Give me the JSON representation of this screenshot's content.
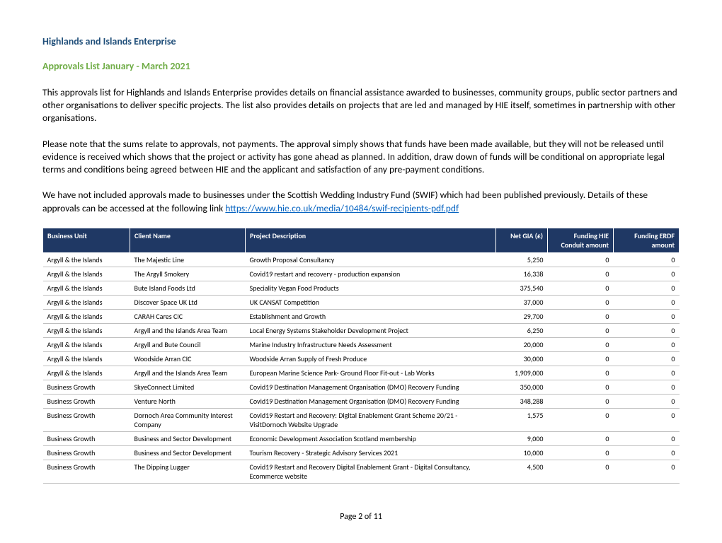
{
  "title1_text": "Highlands and Islands Enterprise",
  "title1_color": "#1f4e79",
  "title2_text": "Approvals List January - March 2021",
  "title2_color": "#70ad47",
  "para1": "This approvals list for Highlands and Islands Enterprise provides details on financial assistance awarded to businesses, community groups, public sector partners and other organisations to deliver specific projects. The list also provides details on projects that are led and managed by HIE itself, sometimes in partnership with other organisations.",
  "para2": "Please note that the sums relate to approvals, not payments. The approval simply shows that funds have been made available, but they will not be released until evidence is received which shows that the project or activity has gone ahead as planned. In addition, draw down of funds will be conditional on appropriate legal terms and conditions being agreed between HIE and the applicant and satisfaction of any pre-payment conditions.",
  "para3_a": "We have not included approvals made to businesses under the Scottish Wedding Industry Fund (SWIF) which had been published previously. Details of these approvals can be accessed at the following link ",
  "para3_link": "https://www.hie.co.uk/media/10484/swif-recipients-pdf.pdf",
  "table": {
    "header_bg": "#1f3864",
    "col_widths": [
      "110px",
      "150px",
      "auto",
      "60px",
      "80px",
      "80px"
    ],
    "columns": [
      "Business Unit",
      "Client Name",
      "Project Description",
      "Net GIA (£)",
      "Funding HIE Conduit amount",
      "Funding ERDF amount"
    ],
    "col_align": [
      "l",
      "l",
      "l",
      "r",
      "r",
      "r"
    ],
    "rows": [
      [
        "Argyll & the Islands",
        "The Majestic Line",
        "Growth Proposal Consultancy",
        "5,250",
        "0",
        "0"
      ],
      [
        "Argyll & the Islands",
        "The Argyll Smokery",
        "Covid19 restart and recovery - production expansion",
        "16,338",
        "0",
        "0"
      ],
      [
        "Argyll & the Islands",
        "Bute Island Foods Ltd",
        "Speciality Vegan Food Products",
        "375,540",
        "0",
        "0"
      ],
      [
        "Argyll & the Islands",
        "Discover Space UK Ltd",
        "UK CANSAT Competition",
        "37,000",
        "0",
        "0"
      ],
      [
        "Argyll & the Islands",
        "CARAH Cares CIC",
        "Establishment and Growth",
        "29,700",
        "0",
        "0"
      ],
      [
        "Argyll & the Islands",
        "Argyll and the Islands Area Team",
        "Local Energy Systems Stakeholder Development Project",
        "6,250",
        "0",
        "0"
      ],
      [
        "Argyll & the Islands",
        "Argyll and Bute Council",
        "Marine Industry Infrastructure Needs Assessment",
        "20,000",
        "0",
        "0"
      ],
      [
        "Argyll & the Islands",
        "Woodside Arran CIC",
        "Woodside Arran Supply of Fresh Produce",
        "30,000",
        "0",
        "0"
      ],
      [
        "Argyll & the Islands",
        "Argyll and the Islands Area Team",
        "European Marine Science Park- Ground Floor Fit-out - Lab Works",
        "1,909,000",
        "0",
        "0"
      ],
      [
        "Business Growth",
        "SkyeConnect Limited",
        "Covid19 Destination Management Organisation (DMO) Recovery Funding",
        "350,000",
        "0",
        "0"
      ],
      [
        "Business Growth",
        "Venture North",
        "Covid19 Destination Management Organisation (DMO) Recovery Funding",
        "348,288",
        "0",
        "0"
      ],
      [
        "Business Growth",
        "Dornoch Area Community Interest Company",
        "Covid19 Restart and Recovery: Digital Enablement Grant Scheme 20/21 - VisitDornoch Website Upgrade",
        "1,575",
        "0",
        "0"
      ],
      [
        "Business Growth",
        "Business and Sector Development",
        "Economic Development Association Scotland membership",
        "9,000",
        "0",
        "0"
      ],
      [
        "Business Growth",
        "Business and Sector Development",
        "Tourism Recovery - Strategic Advisory Services 2021",
        "10,000",
        "0",
        "0"
      ],
      [
        "Business Growth",
        "The Dipping Lugger",
        "Covid19 Restart and Recovery Digital Enablement Grant - Digital Consultancy, Ecommerce website",
        "4,500",
        "0",
        "0"
      ]
    ]
  },
  "footer": "Page 2 of 11"
}
